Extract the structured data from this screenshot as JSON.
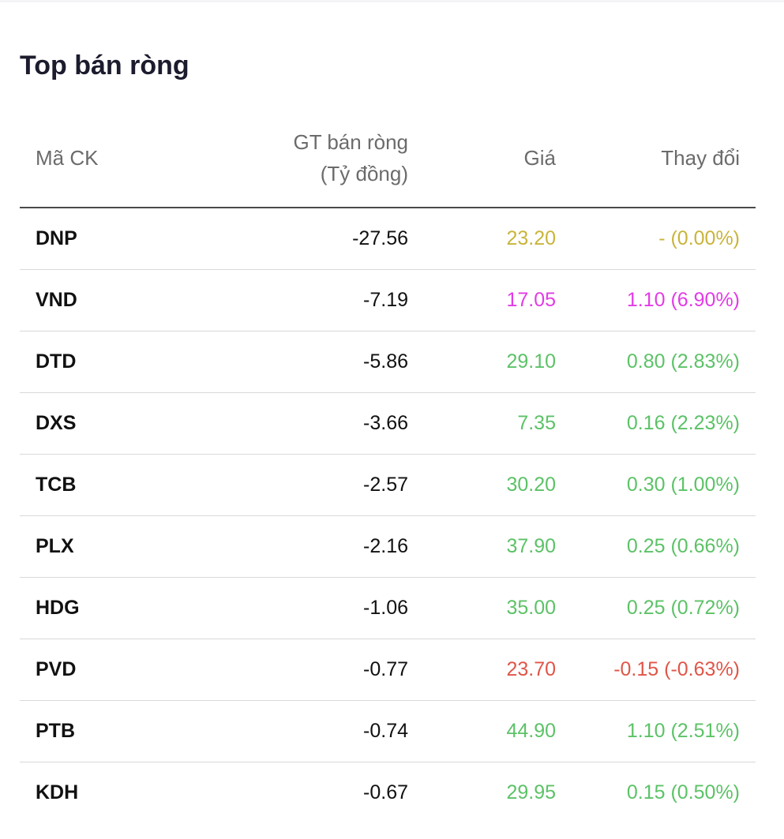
{
  "title": "Top bán ròng",
  "colors": {
    "ref": "#c9b43a",
    "ceiling": "#e23be6",
    "up": "#5cc267",
    "down": "#e05548"
  },
  "table": {
    "headers": {
      "code": "Mã CK",
      "value_line1": "GT bán ròng",
      "value_line2": "(Tỷ đồng)",
      "price": "Giá",
      "change": "Thay đổi"
    },
    "rows": [
      {
        "code": "DNP",
        "value": "-27.56",
        "price": "23.20",
        "change": "- (0.00%)",
        "status": "ref"
      },
      {
        "code": "VND",
        "value": "-7.19",
        "price": "17.05",
        "change": "1.10 (6.90%)",
        "status": "ceiling"
      },
      {
        "code": "DTD",
        "value": "-5.86",
        "price": "29.10",
        "change": "0.80 (2.83%)",
        "status": "up"
      },
      {
        "code": "DXS",
        "value": "-3.66",
        "price": "7.35",
        "change": "0.16 (2.23%)",
        "status": "up"
      },
      {
        "code": "TCB",
        "value": "-2.57",
        "price": "30.20",
        "change": "0.30 (1.00%)",
        "status": "up"
      },
      {
        "code": "PLX",
        "value": "-2.16",
        "price": "37.90",
        "change": "0.25 (0.66%)",
        "status": "up"
      },
      {
        "code": "HDG",
        "value": "-1.06",
        "price": "35.00",
        "change": "0.25 (0.72%)",
        "status": "up"
      },
      {
        "code": "PVD",
        "value": "-0.77",
        "price": "23.70",
        "change": "-0.15 (-0.63%)",
        "status": "down"
      },
      {
        "code": "PTB",
        "value": "-0.74",
        "price": "44.90",
        "change": "1.10 (2.51%)",
        "status": "up"
      },
      {
        "code": "KDH",
        "value": "-0.67",
        "price": "29.95",
        "change": "0.15 (0.50%)",
        "status": "up"
      }
    ]
  }
}
